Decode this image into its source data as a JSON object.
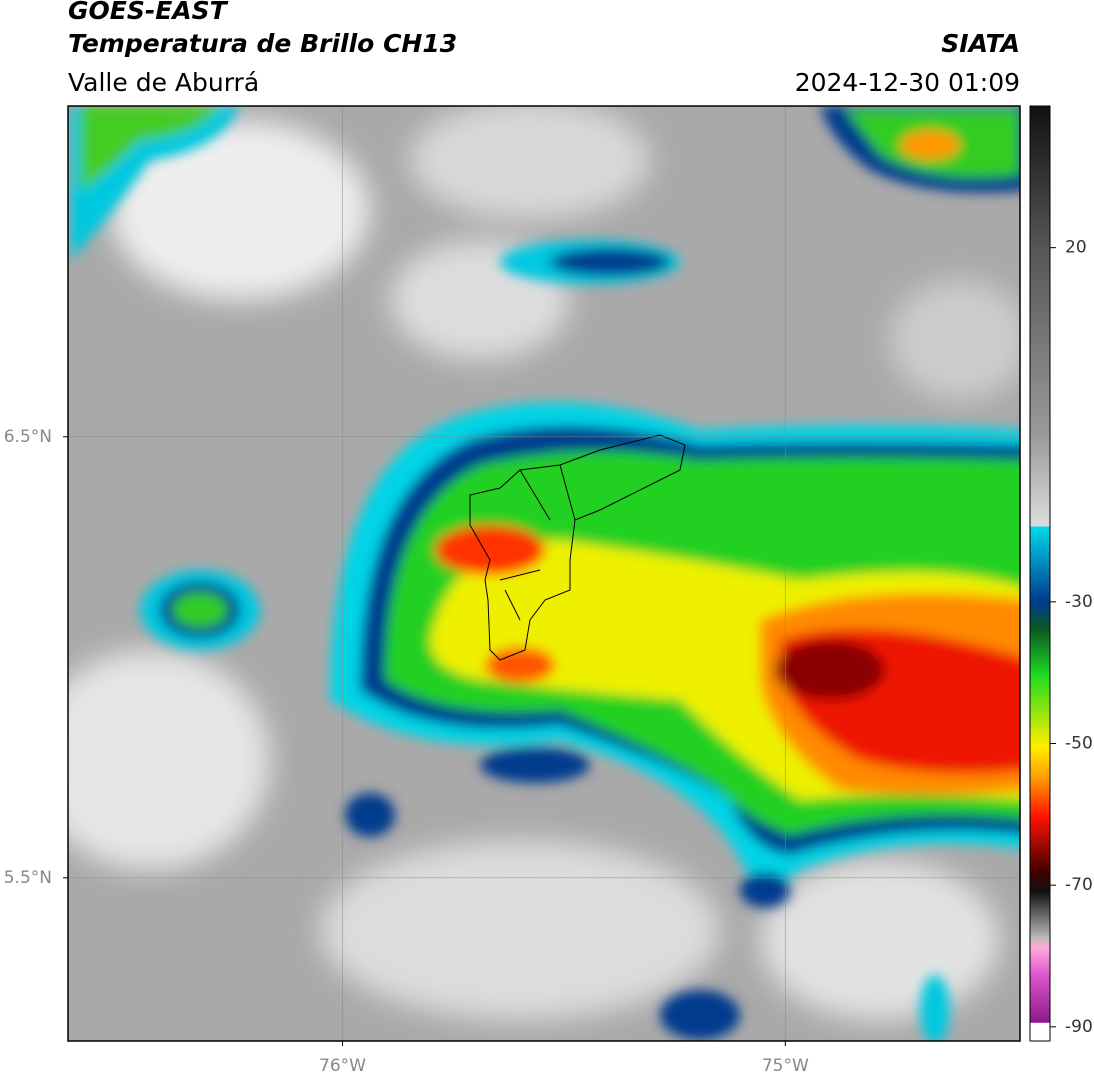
{
  "header": {
    "title": "GOES-EAST",
    "subtitle": "Temperatura de Brillo CH13",
    "region": "Valle de Aburrá",
    "source": "SIATA",
    "datetime": "2024-12-30 01:09"
  },
  "map": {
    "xlim": [
      -76.62,
      -74.47
    ],
    "ylim": [
      5.13,
      7.25
    ],
    "xticks": [
      {
        "value": -76,
        "label": "76°W"
      },
      {
        "value": -75,
        "label": "75°W"
      }
    ],
    "yticks": [
      {
        "value": 6.5,
        "label": "6.5°N"
      },
      {
        "value": 5.5,
        "label": "5.5°N"
      }
    ],
    "grid": true
  },
  "colorbar": {
    "clim": [
      -92,
      40
    ],
    "ticks": [
      20,
      -30,
      -50,
      -70,
      -90
    ]
  }
}
